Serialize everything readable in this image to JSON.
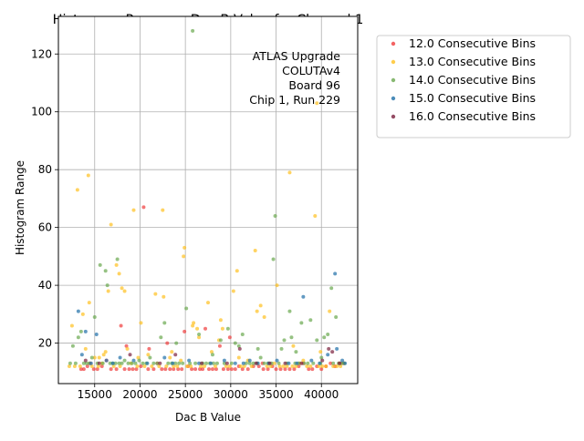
{
  "chart_data": {
    "type": "scatter",
    "title": "Histogram Range vs Dac B Value for Channel 1",
    "xlabel": "Dac B Value",
    "ylabel": "Histogram Range",
    "xlim": [
      11000,
      44000
    ],
    "ylim": [
      6,
      133
    ],
    "xticks": [
      15000,
      20000,
      25000,
      30000,
      35000,
      40000
    ],
    "xtick_labels": [
      "15000",
      "20000",
      "25000",
      "30000",
      "35000",
      "40000"
    ],
    "yticks": [
      20,
      40,
      60,
      80,
      100,
      120
    ],
    "ytick_labels": [
      "20",
      "40",
      "60",
      "80",
      "100",
      "120"
    ],
    "grid": true,
    "annotation": [
      "ATLAS Upgrade",
      "COLUTAv4",
      "Board 96",
      "Chip 1, Run 229"
    ],
    "legend_position": "outside-right",
    "series": [
      {
        "name": "12.0 Consecutive Bins",
        "color": "#f03c3c",
        "points": [
          [
            13500,
            11
          ],
          [
            13800,
            11
          ],
          [
            14200,
            12
          ],
          [
            14500,
            13
          ],
          [
            14900,
            11
          ],
          [
            15300,
            11
          ],
          [
            15800,
            12
          ],
          [
            16300,
            14
          ],
          [
            16800,
            11
          ],
          [
            17400,
            11
          ],
          [
            17900,
            26
          ],
          [
            18300,
            11
          ],
          [
            18800,
            11
          ],
          [
            19200,
            11
          ],
          [
            19600,
            11
          ],
          [
            20100,
            12
          ],
          [
            20400,
            67
          ],
          [
            20900,
            11
          ],
          [
            21500,
            11
          ],
          [
            21900,
            13
          ],
          [
            22400,
            11
          ],
          [
            22800,
            11
          ],
          [
            23300,
            11
          ],
          [
            23700,
            11
          ],
          [
            24200,
            11
          ],
          [
            24600,
            11
          ],
          [
            24900,
            24
          ],
          [
            25300,
            12
          ],
          [
            25700,
            11
          ],
          [
            26100,
            11
          ],
          [
            26600,
            11
          ],
          [
            26900,
            11
          ],
          [
            27200,
            25
          ],
          [
            27600,
            11
          ],
          [
            28000,
            11
          ],
          [
            28400,
            11
          ],
          [
            28800,
            19
          ],
          [
            29200,
            11
          ],
          [
            29700,
            11
          ],
          [
            30100,
            11
          ],
          [
            30500,
            11
          ],
          [
            30900,
            12
          ],
          [
            31300,
            11
          ],
          [
            31900,
            11
          ],
          [
            32500,
            12
          ],
          [
            33100,
            12
          ],
          [
            33600,
            11
          ],
          [
            34100,
            11
          ],
          [
            34600,
            12
          ],
          [
            35000,
            11
          ],
          [
            35500,
            11
          ],
          [
            36000,
            11
          ],
          [
            36500,
            11
          ],
          [
            37000,
            11
          ],
          [
            37500,
            12
          ],
          [
            38000,
            13
          ],
          [
            38600,
            11
          ],
          [
            39000,
            11
          ],
          [
            39500,
            12
          ],
          [
            40000,
            11
          ],
          [
            40500,
            12
          ],
          [
            41000,
            13
          ],
          [
            41500,
            12
          ],
          [
            42000,
            13
          ],
          [
            42400,
            13
          ],
          [
            18500,
            19
          ],
          [
            21000,
            18
          ],
          [
            23000,
            20
          ],
          [
            29900,
            22
          ],
          [
            33500,
            13
          ]
        ]
      },
      {
        "name": "13.0 Consecutive Bins",
        "color": "#ffc01f",
        "points": [
          [
            12200,
            12
          ],
          [
            12500,
            26
          ],
          [
            12800,
            12
          ],
          [
            13100,
            73
          ],
          [
            13400,
            12
          ],
          [
            13700,
            30
          ],
          [
            14000,
            18
          ],
          [
            14300,
            78
          ],
          [
            14400,
            34
          ],
          [
            14700,
            12
          ],
          [
            15000,
            15
          ],
          [
            15400,
            12
          ],
          [
            15800,
            13
          ],
          [
            16200,
            17
          ],
          [
            16500,
            38
          ],
          [
            16800,
            61
          ],
          [
            17100,
            12
          ],
          [
            17400,
            47
          ],
          [
            17700,
            44
          ],
          [
            17800,
            12
          ],
          [
            18000,
            39
          ],
          [
            18300,
            38
          ],
          [
            18600,
            18
          ],
          [
            19000,
            13
          ],
          [
            19300,
            66
          ],
          [
            19700,
            12
          ],
          [
            20100,
            27
          ],
          [
            20500,
            12
          ],
          [
            20900,
            16
          ],
          [
            21300,
            12
          ],
          [
            21700,
            37
          ],
          [
            22100,
            12
          ],
          [
            22500,
            66
          ],
          [
            22600,
            36
          ],
          [
            22900,
            12
          ],
          [
            23300,
            15
          ],
          [
            23700,
            12
          ],
          [
            24100,
            12
          ],
          [
            24500,
            14
          ],
          [
            24800,
            50
          ],
          [
            24900,
            53
          ],
          [
            25200,
            12
          ],
          [
            25600,
            12
          ],
          [
            25800,
            26
          ],
          [
            25900,
            27
          ],
          [
            26300,
            25
          ],
          [
            26700,
            12
          ],
          [
            27100,
            12
          ],
          [
            27500,
            34
          ],
          [
            27900,
            17
          ],
          [
            28300,
            12
          ],
          [
            28700,
            21
          ],
          [
            28900,
            28
          ],
          [
            29100,
            25
          ],
          [
            29500,
            12
          ],
          [
            29900,
            12
          ],
          [
            30300,
            38
          ],
          [
            30700,
            45
          ],
          [
            31100,
            12
          ],
          [
            31500,
            12
          ],
          [
            31900,
            14
          ],
          [
            32300,
            12
          ],
          [
            32700,
            52
          ],
          [
            32900,
            31
          ],
          [
            33300,
            33
          ],
          [
            33700,
            29
          ],
          [
            34000,
            12
          ],
          [
            34400,
            12
          ],
          [
            34800,
            13
          ],
          [
            35100,
            40
          ],
          [
            35400,
            12
          ],
          [
            35800,
            12
          ],
          [
            36200,
            12
          ],
          [
            36500,
            79
          ],
          [
            36800,
            12
          ],
          [
            37200,
            12
          ],
          [
            37600,
            13
          ],
          [
            38000,
            14
          ],
          [
            38400,
            12
          ],
          [
            38800,
            12
          ],
          [
            39300,
            64
          ],
          [
            39500,
            103
          ],
          [
            39700,
            12
          ],
          [
            40100,
            12
          ],
          [
            40500,
            12
          ],
          [
            40900,
            31
          ],
          [
            41300,
            12
          ],
          [
            41700,
            12
          ],
          [
            42100,
            12
          ],
          [
            42500,
            13
          ],
          [
            15500,
            15
          ],
          [
            16000,
            16
          ],
          [
            19800,
            15
          ],
          [
            23500,
            17
          ],
          [
            26500,
            22
          ],
          [
            30900,
            15
          ],
          [
            36900,
            19
          ],
          [
            39900,
            17
          ]
        ]
      },
      {
        "name": "14.0 Consecutive Bins",
        "color": "#6aa84f",
        "points": [
          [
            12300,
            13
          ],
          [
            12600,
            19
          ],
          [
            12900,
            13
          ],
          [
            13200,
            22
          ],
          [
            13500,
            24
          ],
          [
            13800,
            13
          ],
          [
            14100,
            13
          ],
          [
            14400,
            13
          ],
          [
            14700,
            15
          ],
          [
            15000,
            29
          ],
          [
            15300,
            13
          ],
          [
            15600,
            47
          ],
          [
            15900,
            13
          ],
          [
            16200,
            45
          ],
          [
            16400,
            40
          ],
          [
            16700,
            13
          ],
          [
            17000,
            13
          ],
          [
            17300,
            13
          ],
          [
            17500,
            49
          ],
          [
            17700,
            13
          ],
          [
            18000,
            13
          ],
          [
            18300,
            14
          ],
          [
            18700,
            13
          ],
          [
            19100,
            13
          ],
          [
            19500,
            13
          ],
          [
            19900,
            14
          ],
          [
            20300,
            13
          ],
          [
            20700,
            13
          ],
          [
            21100,
            15
          ],
          [
            21500,
            13
          ],
          [
            21900,
            13
          ],
          [
            22300,
            22
          ],
          [
            22700,
            27
          ],
          [
            23100,
            13
          ],
          [
            23500,
            13
          ],
          [
            23900,
            13
          ],
          [
            24300,
            13
          ],
          [
            24700,
            13
          ],
          [
            25100,
            32
          ],
          [
            25500,
            13
          ],
          [
            25800,
            128
          ],
          [
            26100,
            13
          ],
          [
            26500,
            23
          ],
          [
            26900,
            13
          ],
          [
            27300,
            13
          ],
          [
            27700,
            13
          ],
          [
            28100,
            13
          ],
          [
            28500,
            13
          ],
          [
            28900,
            21
          ],
          [
            29300,
            13
          ],
          [
            29700,
            25
          ],
          [
            30100,
            13
          ],
          [
            30500,
            20
          ],
          [
            30900,
            19
          ],
          [
            31300,
            23
          ],
          [
            31700,
            13
          ],
          [
            32100,
            13
          ],
          [
            32500,
            13
          ],
          [
            32900,
            13
          ],
          [
            33300,
            15
          ],
          [
            33700,
            13
          ],
          [
            34100,
            13
          ],
          [
            34500,
            13
          ],
          [
            34700,
            49
          ],
          [
            34900,
            64
          ],
          [
            35300,
            13
          ],
          [
            35600,
            18
          ],
          [
            35900,
            21
          ],
          [
            36200,
            13
          ],
          [
            36500,
            31
          ],
          [
            36700,
            22
          ],
          [
            37100,
            13
          ],
          [
            37500,
            13
          ],
          [
            37800,
            27
          ],
          [
            38100,
            13
          ],
          [
            38500,
            13
          ],
          [
            38800,
            28
          ],
          [
            39100,
            13
          ],
          [
            39500,
            21
          ],
          [
            39900,
            13
          ],
          [
            40300,
            22
          ],
          [
            40700,
            23
          ],
          [
            41100,
            39
          ],
          [
            41300,
            13
          ],
          [
            41600,
            29
          ],
          [
            41900,
            13
          ],
          [
            42200,
            13
          ],
          [
            42500,
            13
          ],
          [
            24000,
            20
          ],
          [
            28000,
            16
          ],
          [
            33000,
            18
          ],
          [
            37200,
            17
          ],
          [
            40000,
            15
          ]
        ]
      },
      {
        "name": "15.0 Consecutive Bins",
        "color": "#1f6fa8",
        "points": [
          [
            13200,
            31
          ],
          [
            13600,
            16
          ],
          [
            14000,
            24
          ],
          [
            14600,
            13
          ],
          [
            15200,
            23
          ],
          [
            16300,
            14
          ],
          [
            17000,
            13
          ],
          [
            17800,
            15
          ],
          [
            19300,
            14
          ],
          [
            20800,
            13
          ],
          [
            22700,
            15
          ],
          [
            23600,
            13
          ],
          [
            25400,
            14
          ],
          [
            26500,
            13
          ],
          [
            27800,
            13
          ],
          [
            29300,
            14
          ],
          [
            30500,
            13
          ],
          [
            31400,
            13
          ],
          [
            32100,
            14
          ],
          [
            33000,
            13
          ],
          [
            34200,
            13
          ],
          [
            35100,
            14
          ],
          [
            36400,
            13
          ],
          [
            37300,
            13
          ],
          [
            38000,
            36
          ],
          [
            38900,
            14
          ],
          [
            39800,
            13
          ],
          [
            40700,
            16
          ],
          [
            41500,
            44
          ],
          [
            41700,
            18
          ],
          [
            42300,
            14
          ],
          [
            42600,
            13
          ]
        ]
      },
      {
        "name": "16.0 Consecutive Bins",
        "color": "#7a1f3d",
        "points": [
          [
            14000,
            14
          ],
          [
            15500,
            13
          ],
          [
            18900,
            16
          ],
          [
            22200,
            13
          ],
          [
            23900,
            16
          ],
          [
            26800,
            13
          ],
          [
            29600,
            13
          ],
          [
            31000,
            18
          ],
          [
            32800,
            13
          ],
          [
            34300,
            13
          ],
          [
            36000,
            13
          ],
          [
            37800,
            13
          ],
          [
            40100,
            14
          ],
          [
            40800,
            18
          ],
          [
            41200,
            17
          ],
          [
            42000,
            13
          ]
        ]
      }
    ]
  }
}
